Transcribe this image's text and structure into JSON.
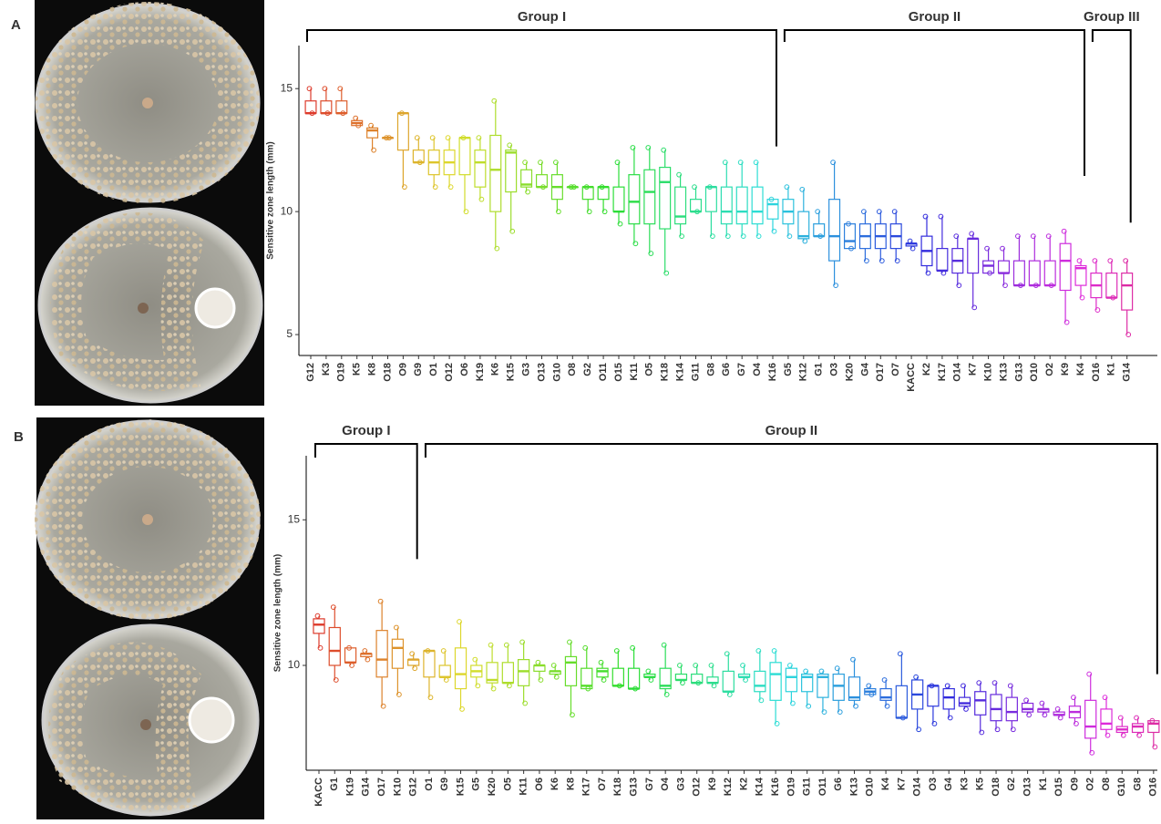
{
  "chart_data": [
    {
      "type": "box",
      "panel_label": "A",
      "ylabel": "Sensitive zone length (mm)",
      "palette": "hue",
      "ylim": [
        4.15,
        16.75
      ],
      "yticks": [
        5,
        10,
        15
      ],
      "categories": [
        "G12",
        "K3",
        "O19",
        "K5",
        "K8",
        "O18",
        "O9",
        "G9",
        "O1",
        "O12",
        "O6",
        "K19",
        "K6",
        "K15",
        "G3",
        "O13",
        "G10",
        "O8",
        "G2",
        "O11",
        "O15",
        "K11",
        "O5",
        "K18",
        "K14",
        "G11",
        "G8",
        "G6",
        "G7",
        "O4",
        "K16",
        "G5",
        "K12",
        "G1",
        "O3",
        "K20",
        "G4",
        "O17",
        "O7",
        "KACC",
        "K2",
        "K17",
        "O14",
        "K7",
        "K10",
        "K13",
        "G13",
        "O10",
        "O2",
        "K9",
        "K4",
        "O16",
        "K1",
        "G14"
      ],
      "min": [
        14,
        14,
        14,
        13.5,
        12.5,
        13,
        11,
        12,
        11,
        11,
        10,
        10.5,
        8.5,
        9.2,
        10.8,
        11,
        10,
        11,
        10,
        10,
        9.5,
        8.7,
        8.3,
        7.5,
        9,
        10,
        9,
        9,
        9,
        9,
        9.2,
        9,
        8.8,
        9,
        7,
        8.5,
        8,
        8,
        8,
        8.5,
        7.5,
        7.5,
        7,
        6.1,
        7.5,
        7,
        7,
        7,
        7,
        5.5,
        6.5,
        6,
        6.5,
        5
      ],
      "q1": [
        14,
        14,
        14,
        13.5,
        13,
        13,
        12.5,
        12,
        11.5,
        11.5,
        11.5,
        11,
        10,
        10.8,
        11,
        11,
        10.5,
        11,
        10.5,
        10.5,
        10,
        9.5,
        9.5,
        9.3,
        9.5,
        10,
        10,
        9.5,
        9.5,
        9.5,
        9.7,
        9.5,
        8.9,
        9,
        8,
        8.5,
        8.5,
        8.5,
        8.5,
        8.6,
        7.8,
        7.6,
        7.5,
        7.5,
        7.5,
        7.5,
        7,
        7,
        7,
        6.8,
        7,
        6.5,
        6.5,
        6
      ],
      "median": [
        14,
        14,
        14,
        13.6,
        13.3,
        13,
        14,
        12,
        12,
        12,
        13,
        12,
        11.7,
        12.4,
        11.1,
        11,
        11,
        11,
        11,
        11,
        10,
        10.4,
        10.8,
        11.2,
        9.8,
        10,
        11,
        10,
        10,
        10,
        10.3,
        10,
        9,
        9,
        9,
        8.8,
        9,
        9,
        9,
        8.7,
        8.4,
        7.6,
        8,
        8.9,
        7.8,
        7.5,
        7,
        7,
        7,
        8,
        7.7,
        7,
        6.5,
        7
      ],
      "q3": [
        14.5,
        14.5,
        14.5,
        13.7,
        13.4,
        13,
        14,
        12.5,
        12.5,
        12.5,
        13,
        12.5,
        13.1,
        12.5,
        11.7,
        11.5,
        11.5,
        11,
        11,
        11,
        11,
        11.5,
        11.7,
        11.8,
        11,
        10.5,
        11,
        11,
        11,
        11,
        10.5,
        10.5,
        10,
        9.5,
        10.5,
        9.5,
        9.5,
        9.5,
        9.5,
        8.7,
        9,
        8.5,
        8.5,
        8.9,
        8,
        8,
        8,
        8,
        8,
        8.7,
        7.8,
        7.5,
        7.5,
        7.5
      ],
      "max": [
        15,
        15,
        15,
        13.8,
        13.5,
        13,
        14,
        13,
        13,
        13,
        13,
        13,
        14.5,
        12.7,
        12,
        12,
        12,
        11,
        11,
        11,
        12,
        12.6,
        12.6,
        12.5,
        11.5,
        11,
        11,
        12,
        12,
        12,
        10.5,
        11,
        10.9,
        10,
        12,
        9.5,
        10,
        10,
        10,
        8.8,
        9.8,
        9.8,
        9,
        9.1,
        8.5,
        8.5,
        9,
        9,
        9,
        9.2,
        8,
        8,
        8,
        8
      ],
      "groups": [
        {
          "label": "Group I",
          "first": "G12",
          "last": "K16",
          "end": 12.65
        },
        {
          "label": "Group II",
          "first": "G5",
          "last": "K4",
          "end": 11.45
        },
        {
          "label": "Group III",
          "first": "O16",
          "last": "G14",
          "end": 9.55
        }
      ]
    },
    {
      "type": "box",
      "panel_label": "B",
      "ylabel": "Sensitive zone length (mm)",
      "palette": "hue",
      "ylim": [
        6.4,
        17.2
      ],
      "yticks": [
        10,
        15
      ],
      "categories": [
        "KACC",
        "G1",
        "K19",
        "G14",
        "O17",
        "K10",
        "G12",
        "O1",
        "G9",
        "K15",
        "G5",
        "K20",
        "O5",
        "K11",
        "O6",
        "K6",
        "K8",
        "K17",
        "O7",
        "K18",
        "G13",
        "G7",
        "O4",
        "G3",
        "O12",
        "K9",
        "K12",
        "K2",
        "K14",
        "K16",
        "O19",
        "G11",
        "O11",
        "G6",
        "K13",
        "O10",
        "K4",
        "K7",
        "O14",
        "O3",
        "G4",
        "K3",
        "K5",
        "O18",
        "G2",
        "O13",
        "K1",
        "O15",
        "O9",
        "O2",
        "O8",
        "G10",
        "G8",
        "O16"
      ],
      "min": [
        10.6,
        9.5,
        10,
        10.2,
        8.6,
        9,
        9.9,
        8.9,
        9.5,
        8.5,
        9.3,
        9.2,
        9.3,
        8.7,
        9.5,
        9.6,
        8.3,
        9.2,
        9.5,
        9.3,
        9.2,
        9.5,
        9,
        9.4,
        9.4,
        9.3,
        9,
        9.5,
        8.8,
        8,
        8.7,
        8.6,
        8.4,
        8.4,
        8.6,
        9,
        8.6,
        8.2,
        7.8,
        8,
        8.2,
        8.5,
        7.7,
        7.8,
        7.8,
        8.3,
        8.3,
        8.2,
        8,
        7,
        7.6,
        7.6,
        7.6,
        7.2
      ],
      "q1": [
        11.1,
        10,
        10.1,
        10.3,
        9.6,
        9.9,
        10,
        9.6,
        9.6,
        9.2,
        9.6,
        9.4,
        9.4,
        9.3,
        9.8,
        9.7,
        9.3,
        9.2,
        9.6,
        9.3,
        9.2,
        9.6,
        9.2,
        9.5,
        9.4,
        9.4,
        9.1,
        9.6,
        9.1,
        8.8,
        9.1,
        9.1,
        8.9,
        8.8,
        8.8,
        9,
        8.8,
        8.2,
        8.5,
        8.6,
        8.5,
        8.6,
        8.3,
        8.1,
        8.1,
        8.4,
        8.4,
        8.3,
        8.2,
        7.5,
        7.8,
        7.7,
        7.7,
        7.7
      ],
      "median": [
        11.4,
        10.5,
        10.1,
        10.4,
        10.2,
        10.6,
        10.2,
        10.5,
        9.6,
        9.7,
        9.8,
        9.5,
        9.4,
        9.8,
        10,
        9.8,
        10.1,
        9.3,
        9.8,
        9.3,
        9.2,
        9.6,
        9.3,
        9.5,
        9.4,
        9.4,
        9.1,
        9.6,
        9.3,
        9.7,
        9.6,
        9.6,
        9.6,
        9.3,
        8.9,
        9.1,
        8.9,
        8.2,
        9,
        9.3,
        8.9,
        8.7,
        8.8,
        8.5,
        8.4,
        8.5,
        8.5,
        8.3,
        8.4,
        7.9,
        8,
        7.8,
        7.9,
        8
      ],
      "q3": [
        11.6,
        11.3,
        10.6,
        10.4,
        11.2,
        10.9,
        10.2,
        10.5,
        10,
        10.6,
        10,
        10.1,
        10.1,
        10.2,
        10,
        9.8,
        10.3,
        9.9,
        9.9,
        9.9,
        9.9,
        9.7,
        9.9,
        9.7,
        9.7,
        9.6,
        9.8,
        9.7,
        9.8,
        10.1,
        9.9,
        9.7,
        9.7,
        9.7,
        9.6,
        9.2,
        9.2,
        9.3,
        9.5,
        9.3,
        9.2,
        8.9,
        9.1,
        9,
        8.9,
        8.7,
        8.5,
        8.4,
        8.6,
        8.8,
        8.5,
        7.9,
        8,
        8.1
      ],
      "max": [
        11.7,
        12,
        10.6,
        10.5,
        12.2,
        11.3,
        10.4,
        10.5,
        10.5,
        11.5,
        10.2,
        10.7,
        10.7,
        10.8,
        10.1,
        10,
        10.8,
        10.6,
        10.1,
        10.5,
        10.6,
        9.8,
        10.7,
        10,
        10,
        10,
        10.4,
        10,
        10.5,
        10.5,
        10,
        9.8,
        9.8,
        9.9,
        10.2,
        9.3,
        9.5,
        10.4,
        9.6,
        9.3,
        9.3,
        9.3,
        9.4,
        9.4,
        9.3,
        8.8,
        8.7,
        8.5,
        8.9,
        9.7,
        8.9,
        8.2,
        8.2,
        8.1
      ],
      "groups": [
        {
          "label": "Group I",
          "first": "KACC",
          "last": "G12",
          "end": 13.65
        },
        {
          "label": "Group II",
          "first": "O1",
          "last": "O16",
          "end": 9.7
        }
      ]
    }
  ]
}
